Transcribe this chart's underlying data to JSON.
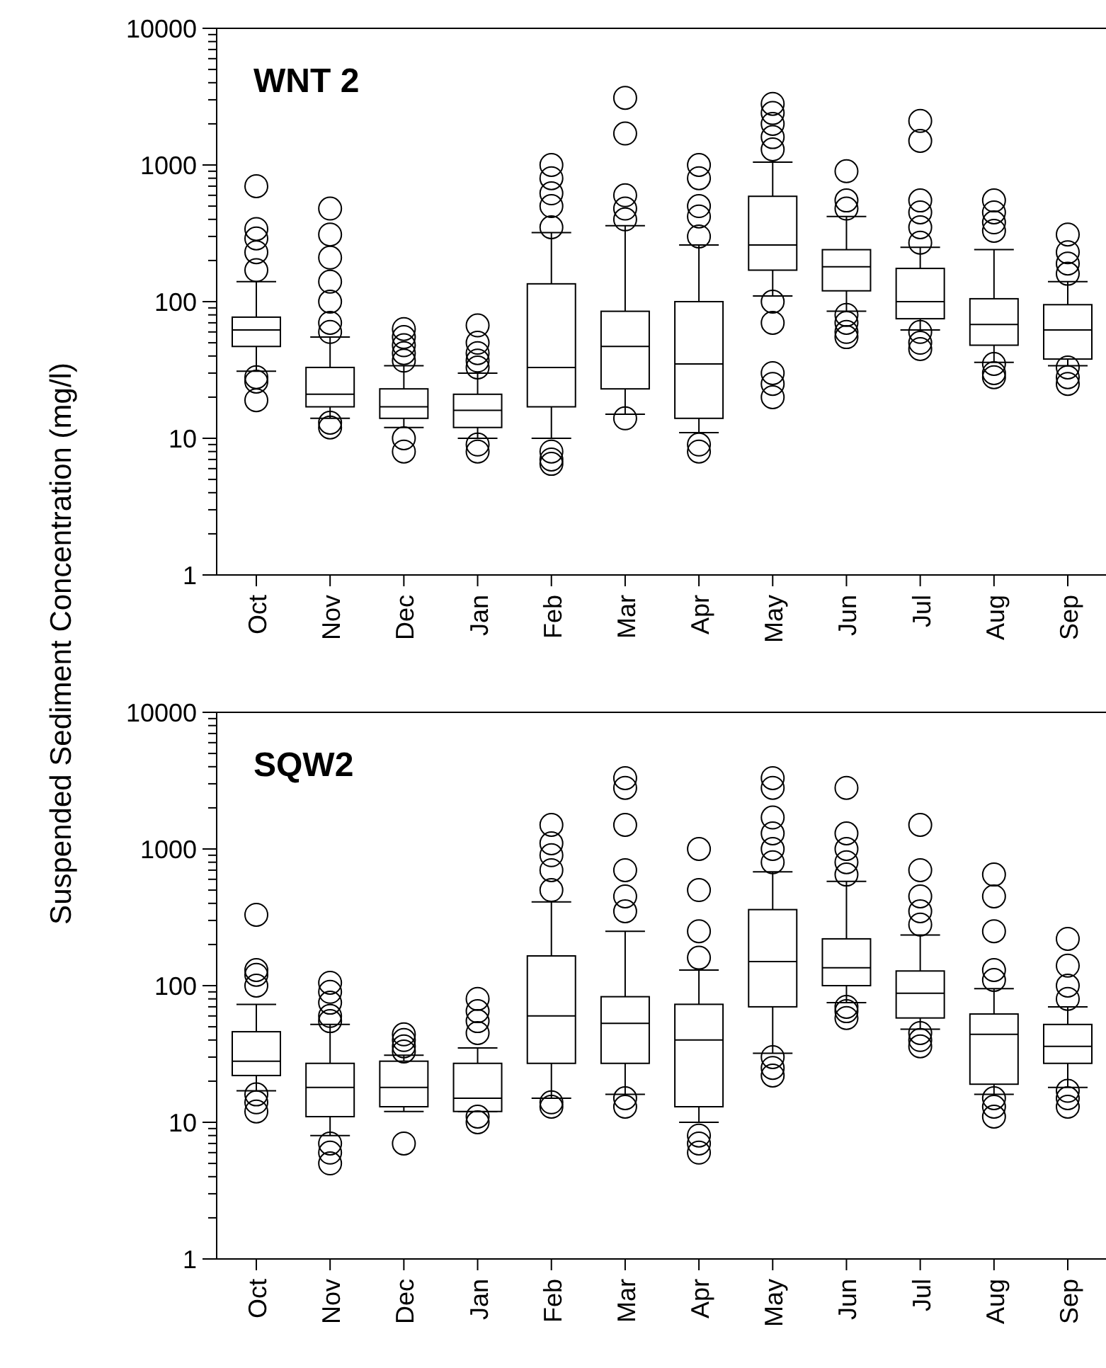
{
  "chart_data": [
    {
      "type": "box",
      "title": "WNT 2",
      "ylabel": "Suspended Sediment Concentration (mg/l)",
      "log": true,
      "grid": false,
      "marker": "circle",
      "categories": [
        "Oct",
        "Nov",
        "Dec",
        "Jan",
        "Feb",
        "Mar",
        "Apr",
        "May",
        "Jun",
        "Jul",
        "Aug",
        "Sep"
      ],
      "ylim": [
        1,
        10000
      ],
      "yticks": [
        1,
        {
          "value": 2,
          "label": null
        },
        {
          "value": 3,
          "label": null
        },
        {
          "value": 4,
          "label": null
        },
        {
          "value": 5,
          "label": null
        },
        {
          "value": 6,
          "label": null
        },
        {
          "value": 7,
          "label": null
        },
        {
          "value": 8,
          "label": null
        },
        {
          "value": 9,
          "label": null
        },
        10,
        {
          "value": 20,
          "label": null
        },
        {
          "value": 30,
          "label": null
        },
        {
          "value": 40,
          "label": null
        },
        {
          "value": 50,
          "label": null
        },
        {
          "value": 60,
          "label": null
        },
        {
          "value": 70,
          "label": null
        },
        {
          "value": 80,
          "label": null
        },
        {
          "value": 90,
          "label": null
        },
        100,
        {
          "value": 200,
          "label": null
        },
        {
          "value": 300,
          "label": null
        },
        {
          "value": 400,
          "label": null
        },
        {
          "value": 500,
          "label": null
        },
        {
          "value": 600,
          "label": null
        },
        {
          "value": 700,
          "label": null
        },
        {
          "value": 800,
          "label": null
        },
        {
          "value": 900,
          "label": null
        },
        1000,
        {
          "value": 2000,
          "label": null
        },
        {
          "value": 3000,
          "label": null
        },
        {
          "value": 4000,
          "label": null
        },
        {
          "value": 5000,
          "label": null
        },
        {
          "value": 6000,
          "label": null
        },
        {
          "value": 7000,
          "label": null
        },
        {
          "value": 8000,
          "label": null
        },
        {
          "value": 9000,
          "label": null
        },
        10000
      ],
      "boxes": [
        {
          "low": 31,
          "q1": 47,
          "median": 62,
          "q3": 77,
          "high": 140,
          "outliers": [
            170,
            230,
            290,
            340,
            700,
            28,
            26,
            19
          ]
        },
        {
          "low": 14,
          "q1": 17,
          "median": 21,
          "q3": 33,
          "high": 55,
          "outliers": [
            60,
            70,
            100,
            140,
            210,
            310,
            480,
            13,
            12
          ]
        },
        {
          "low": 12,
          "q1": 14,
          "median": 17,
          "q3": 23,
          "high": 34,
          "outliers": [
            37,
            42,
            48,
            55,
            63,
            10,
            8
          ]
        },
        {
          "low": 10,
          "q1": 12,
          "median": 16,
          "q3": 21,
          "high": 30,
          "outliers": [
            33,
            37,
            42,
            50,
            67,
            9,
            8
          ]
        },
        {
          "low": 10,
          "q1": 17,
          "median": 33,
          "q3": 135,
          "high": 320,
          "outliers": [
            350,
            500,
            620,
            800,
            1000,
            8,
            7,
            6.5
          ]
        },
        {
          "low": 15,
          "q1": 23,
          "median": 47,
          "q3": 85,
          "high": 360,
          "outliers": [
            400,
            480,
            600,
            1700,
            3100,
            14
          ]
        },
        {
          "low": 11,
          "q1": 14,
          "median": 35,
          "q3": 100,
          "high": 260,
          "outliers": [
            300,
            420,
            500,
            800,
            1000,
            9,
            8
          ]
        },
        {
          "low": 110,
          "q1": 170,
          "median": 260,
          "q3": 590,
          "high": 1050,
          "outliers": [
            1300,
            1600,
            2000,
            2400,
            2800,
            100,
            70,
            30,
            25,
            20
          ]
        },
        {
          "low": 85,
          "q1": 120,
          "median": 180,
          "q3": 240,
          "high": 420,
          "outliers": [
            480,
            550,
            900,
            80,
            70,
            60,
            55
          ]
        },
        {
          "low": 62,
          "q1": 75,
          "median": 100,
          "q3": 175,
          "high": 250,
          "outliers": [
            270,
            350,
            450,
            550,
            1500,
            2100,
            60,
            50,
            45
          ]
        },
        {
          "low": 36,
          "q1": 48,
          "median": 68,
          "q3": 105,
          "high": 240,
          "outliers": [
            330,
            380,
            450,
            550,
            35,
            30,
            28
          ]
        },
        {
          "low": 34,
          "q1": 38,
          "median": 62,
          "q3": 95,
          "high": 140,
          "outliers": [
            160,
            190,
            230,
            310,
            33,
            28,
            25
          ]
        }
      ]
    },
    {
      "type": "box",
      "title": "SQW2",
      "log": true,
      "grid": false,
      "marker": "circle",
      "categories": [
        "Oct",
        "Nov",
        "Dec",
        "Jan",
        "Feb",
        "Mar",
        "Apr",
        "May",
        "Jun",
        "Jul",
        "Aug",
        "Sep"
      ],
      "ylim": [
        1,
        10000
      ],
      "yticks": [
        1,
        {
          "value": 2,
          "label": null
        },
        {
          "value": 3,
          "label": null
        },
        {
          "value": 4,
          "label": null
        },
        {
          "value": 5,
          "label": null
        },
        {
          "value": 6,
          "label": null
        },
        {
          "value": 7,
          "label": null
        },
        {
          "value": 8,
          "label": null
        },
        {
          "value": 9,
          "label": null
        },
        10,
        {
          "value": 20,
          "label": null
        },
        {
          "value": 30,
          "label": null
        },
        {
          "value": 40,
          "label": null
        },
        {
          "value": 50,
          "label": null
        },
        {
          "value": 60,
          "label": null
        },
        {
          "value": 70,
          "label": null
        },
        {
          "value": 80,
          "label": null
        },
        {
          "value": 90,
          "label": null
        },
        100,
        {
          "value": 200,
          "label": null
        },
        {
          "value": 300,
          "label": null
        },
        {
          "value": 400,
          "label": null
        },
        {
          "value": 500,
          "label": null
        },
        {
          "value": 600,
          "label": null
        },
        {
          "value": 700,
          "label": null
        },
        {
          "value": 800,
          "label": null
        },
        {
          "value": 900,
          "label": null
        },
        1000,
        {
          "value": 2000,
          "label": null
        },
        {
          "value": 3000,
          "label": null
        },
        {
          "value": 4000,
          "label": null
        },
        {
          "value": 5000,
          "label": null
        },
        {
          "value": 6000,
          "label": null
        },
        {
          "value": 7000,
          "label": null
        },
        {
          "value": 8000,
          "label": null
        },
        {
          "value": 9000,
          "label": null
        },
        10000
      ],
      "boxes": [
        {
          "low": 17,
          "q1": 22,
          "median": 28,
          "q3": 46,
          "high": 73,
          "outliers": [
            100,
            120,
            130,
            330,
            16,
            14,
            12
          ]
        },
        {
          "low": 8,
          "q1": 11,
          "median": 18,
          "q3": 27,
          "high": 52,
          "outliers": [
            55,
            60,
            75,
            90,
            105,
            7,
            6,
            5
          ]
        },
        {
          "low": 12,
          "q1": 13,
          "median": 18,
          "q3": 28,
          "high": 31,
          "outliers": [
            33,
            36,
            40,
            44,
            7
          ]
        },
        {
          "low": 12,
          "q1": 12,
          "median": 15,
          "q3": 27,
          "high": 35,
          "outliers": [
            45,
            55,
            65,
            80,
            11,
            10
          ]
        },
        {
          "low": 15,
          "q1": 27,
          "median": 60,
          "q3": 165,
          "high": 410,
          "outliers": [
            500,
            700,
            900,
            1100,
            1500,
            14,
            13
          ]
        },
        {
          "low": 16,
          "q1": 27,
          "median": 53,
          "q3": 83,
          "high": 250,
          "outliers": [
            350,
            450,
            700,
            1500,
            2800,
            3300,
            15,
            13
          ]
        },
        {
          "low": 10,
          "q1": 13,
          "median": 40,
          "q3": 73,
          "high": 130,
          "outliers": [
            160,
            250,
            500,
            1000,
            8,
            7,
            6
          ]
        },
        {
          "low": 32,
          "q1": 70,
          "median": 150,
          "q3": 360,
          "high": 680,
          "outliers": [
            800,
            1000,
            1300,
            1700,
            2800,
            3300,
            30,
            25,
            22
          ]
        },
        {
          "low": 75,
          "q1": 100,
          "median": 135,
          "q3": 220,
          "high": 580,
          "outliers": [
            650,
            800,
            1000,
            1300,
            2800,
            70,
            65,
            58
          ]
        },
        {
          "low": 48,
          "q1": 58,
          "median": 88,
          "q3": 128,
          "high": 235,
          "outliers": [
            280,
            350,
            450,
            700,
            1500,
            45,
            40,
            36
          ]
        },
        {
          "low": 16,
          "q1": 19,
          "median": 44,
          "q3": 62,
          "high": 95,
          "outliers": [
            110,
            130,
            250,
            450,
            650,
            15,
            13,
            11
          ]
        },
        {
          "low": 18,
          "q1": 27,
          "median": 36,
          "q3": 52,
          "high": 70,
          "outliers": [
            80,
            100,
            140,
            220,
            17,
            15,
            13
          ]
        }
      ]
    }
  ]
}
